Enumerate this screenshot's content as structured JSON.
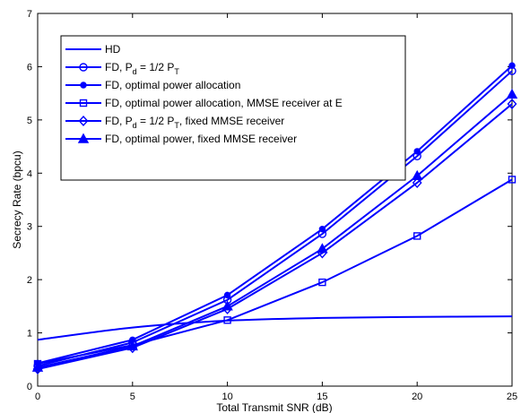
{
  "chart_data": {
    "type": "line",
    "xlabel": "Total Transmit SNR (dB)",
    "ylabel": "Secrecy Rate (bpcu)",
    "xlim": [
      0,
      25
    ],
    "ylim": [
      0,
      7
    ],
    "x_ticks": [
      "0",
      "5",
      "10",
      "15",
      "20",
      "25"
    ],
    "y_ticks": [
      "0",
      "1",
      "2",
      "3",
      "4",
      "5",
      "6",
      "7"
    ],
    "grid": false,
    "legend_position": "top-left",
    "line_color": "#0000ff",
    "x": [
      0,
      5,
      10,
      15,
      20,
      25
    ],
    "series": [
      {
        "label_parts": [
          {
            "text": "HD"
          }
        ],
        "marker": "none",
        "values": [
          0.87,
          1.1,
          1.23,
          1.28,
          1.3,
          1.31
        ]
      },
      {
        "label_parts": [
          {
            "text": "FD, P"
          },
          {
            "text": "d",
            "sub": true
          },
          {
            "text": " = 1/2 P"
          },
          {
            "text": "T",
            "sub": true
          }
        ],
        "marker": "circle",
        "values": [
          0.38,
          0.82,
          1.62,
          2.86,
          4.32,
          5.92
        ]
      },
      {
        "label_parts": [
          {
            "text": "FD, optimal power allocation"
          }
        ],
        "marker": "dot",
        "values": [
          0.43,
          0.87,
          1.71,
          2.95,
          4.41,
          6.02
        ]
      },
      {
        "label_parts": [
          {
            "text": "FD, optimal power allocation,  MMSE receiver at E"
          }
        ],
        "marker": "square",
        "values": [
          0.42,
          0.77,
          1.24,
          1.95,
          2.82,
          3.88
        ]
      },
      {
        "label_parts": [
          {
            "text": "FD, P"
          },
          {
            "text": "d",
            "sub": true
          },
          {
            "text": " = 1/2 P"
          },
          {
            "text": "T",
            "sub": true
          },
          {
            "text": ", fixed MMSE receiver"
          }
        ],
        "marker": "diamond",
        "values": [
          0.32,
          0.72,
          1.45,
          2.5,
          3.82,
          5.3
        ]
      },
      {
        "label_parts": [
          {
            "text": "FD, optimal power, fixed MMSE receiver"
          }
        ],
        "marker": "triangle",
        "values": [
          0.35,
          0.75,
          1.5,
          2.58,
          3.95,
          5.48
        ]
      }
    ]
  }
}
